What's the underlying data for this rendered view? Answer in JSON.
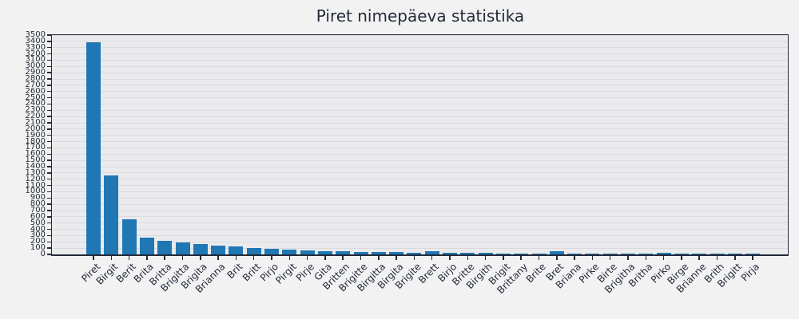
{
  "chart_data": {
    "type": "bar",
    "title": "Piret nimepäeva statistika",
    "xlabel": "",
    "ylabel": "",
    "ylim": [
      0,
      3500
    ],
    "ytick_step": 100,
    "grid": "horizontal",
    "legend": "none",
    "categories": [
      "Piret",
      "Birgit",
      "Berit",
      "Brita",
      "Britta",
      "Brigitta",
      "Brigita",
      "Brianna",
      "Brit",
      "Britt",
      "Pirjo",
      "Pirgit",
      "Pirje",
      "Gita",
      "Britten",
      "Brigitte",
      "Birgitta",
      "Birgita",
      "Brigite",
      "Brett",
      "Birjo",
      "Britte",
      "Birgith",
      "Brigit",
      "Brittany",
      "Brite",
      "Bret",
      "Briana",
      "Pirke",
      "Birte",
      "Brigitha",
      "Britha",
      "Pirko",
      "Birge",
      "Brianne",
      "Brith",
      "Brigitt",
      "Pirja"
    ],
    "values": [
      3390,
      1255,
      560,
      270,
      220,
      195,
      165,
      145,
      125,
      105,
      90,
      78,
      68,
      55,
      45,
      40,
      36,
      33,
      30,
      45,
      26,
      23,
      20,
      19,
      17,
      16,
      55,
      15,
      14,
      13,
      13,
      12,
      30,
      12,
      11,
      11,
      10,
      10
    ],
    "colors": {
      "bar": "#1f77b4",
      "text": "#232a38",
      "figure_background": "#f2f2f3",
      "plot_background": "#ebebed",
      "gridline": "#dadbde"
    }
  }
}
